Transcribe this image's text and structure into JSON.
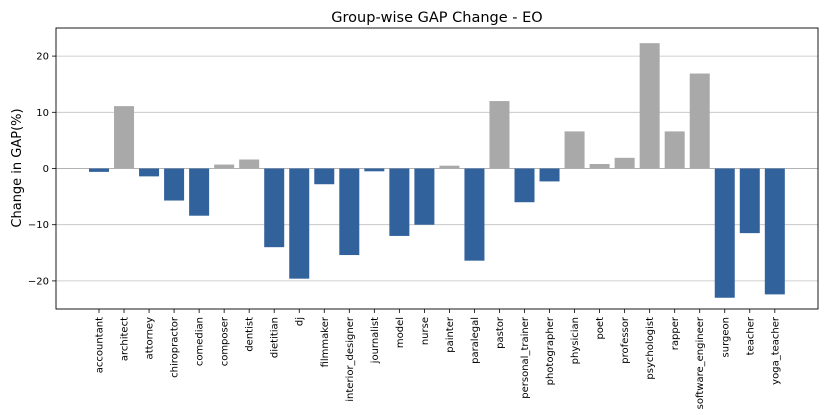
{
  "chart_data": {
    "type": "bar",
    "title": "Group-wise GAP Change - EO",
    "xlabel": "",
    "ylabel": "Change in GAP(%)",
    "ylim": [
      -25,
      25
    ],
    "yticks": [
      -20,
      -10,
      0,
      10,
      20
    ],
    "ytick_labels": [
      "−20",
      "−10",
      "0",
      "10",
      "20"
    ],
    "grid": "horizontal",
    "colors": {
      "positive": "#a9a9a9",
      "negative": "#32629c",
      "grid": "#c0c0c0",
      "zero_line": "#999999"
    },
    "categories": [
      "accountant",
      "architect",
      "attorney",
      "chiropractor",
      "comedian",
      "composer",
      "dentist",
      "dietitian",
      "dj",
      "filmmaker",
      "interior_designer",
      "journalist",
      "model",
      "nurse",
      "painter",
      "paralegal",
      "pastor",
      "personal_trainer",
      "photographer",
      "physician",
      "poet",
      "professor",
      "psychologist",
      "rapper",
      "software_engineer",
      "surgeon",
      "teacher",
      "yoga_teacher"
    ],
    "values": [
      -0.6,
      11.1,
      -1.4,
      -5.7,
      -8.4,
      0.7,
      1.6,
      -14.0,
      -19.6,
      -2.8,
      -15.4,
      -0.5,
      -12.0,
      -10.0,
      0.5,
      -16.4,
      12.0,
      -6.0,
      -2.3,
      6.6,
      0.8,
      1.9,
      22.3,
      6.6,
      16.9,
      -23.0,
      -11.5,
      -22.4
    ]
  }
}
